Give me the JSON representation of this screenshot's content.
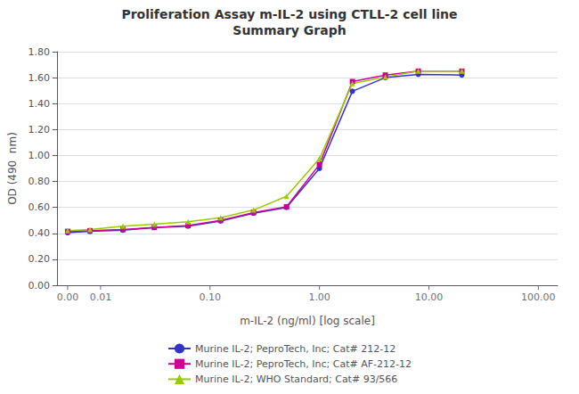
{
  "chart_data": {
    "type": "line",
    "title": "Proliferation Assay m-IL-2 using CTLL-2 cell line",
    "subtitle": "Summary Graph",
    "xlabel": "m-IL-2 (ng/ml) [log scale]",
    "ylabel": "OD (490  nm)",
    "log": "x",
    "grid": true,
    "legend": "bottom",
    "xlim": [
      0.004,
      150.0
    ],
    "ylim": [
      0.0,
      1.8
    ],
    "xticks": [
      {
        "value": 0.005,
        "label": "0.00"
      },
      {
        "value": 0.01,
        "label": "0.01"
      },
      {
        "value": 0.1,
        "label": "0.10"
      },
      {
        "value": 1.0,
        "label": "1.00"
      },
      {
        "value": 10.0,
        "label": "10.00"
      },
      {
        "value": 100.0,
        "label": "100.00"
      }
    ],
    "yticks": [
      {
        "value": 0.0,
        "label": "0.00"
      },
      {
        "value": 0.2,
        "label": "0.20"
      },
      {
        "value": 0.4,
        "label": "0.40"
      },
      {
        "value": 0.6,
        "label": "0.60"
      },
      {
        "value": 0.8,
        "label": "0.80"
      },
      {
        "value": 1.0,
        "label": "1.00"
      },
      {
        "value": 1.2,
        "label": "1.20"
      },
      {
        "value": 1.4,
        "label": "1.40"
      },
      {
        "value": 1.6,
        "label": "1.60"
      },
      {
        "value": 1.8,
        "label": "1.80"
      }
    ],
    "x": [
      0.005,
      0.008,
      0.016,
      0.031,
      0.063,
      0.125,
      0.25,
      0.5,
      1.0,
      2.0,
      4.0,
      8.0,
      20.0
    ],
    "series": [
      {
        "name": "Murine IL-2; PeproTech, Inc; Cat# 212-12",
        "color": "#3333CC",
        "marker": "circle",
        "values": [
          0.405,
          0.415,
          0.425,
          0.445,
          0.455,
          0.495,
          0.555,
          0.6,
          0.9,
          1.495,
          1.6,
          1.625,
          1.62
        ]
      },
      {
        "name": "Murine IL-2; PeproTech, Inc; Cat# AF-212-12",
        "color": "#CC0099",
        "marker": "square",
        "values": [
          0.415,
          0.42,
          0.43,
          0.445,
          0.46,
          0.5,
          0.56,
          0.605,
          0.93,
          1.57,
          1.62,
          1.65,
          1.65
        ]
      },
      {
        "name": "Murine IL-2; WHO Standard; Cat# 93/566",
        "color": "#99CC00",
        "marker": "triangle",
        "values": [
          0.42,
          0.43,
          0.455,
          0.47,
          0.49,
          0.52,
          0.58,
          0.685,
          0.975,
          1.555,
          1.605,
          1.65,
          1.65
        ]
      }
    ]
  }
}
